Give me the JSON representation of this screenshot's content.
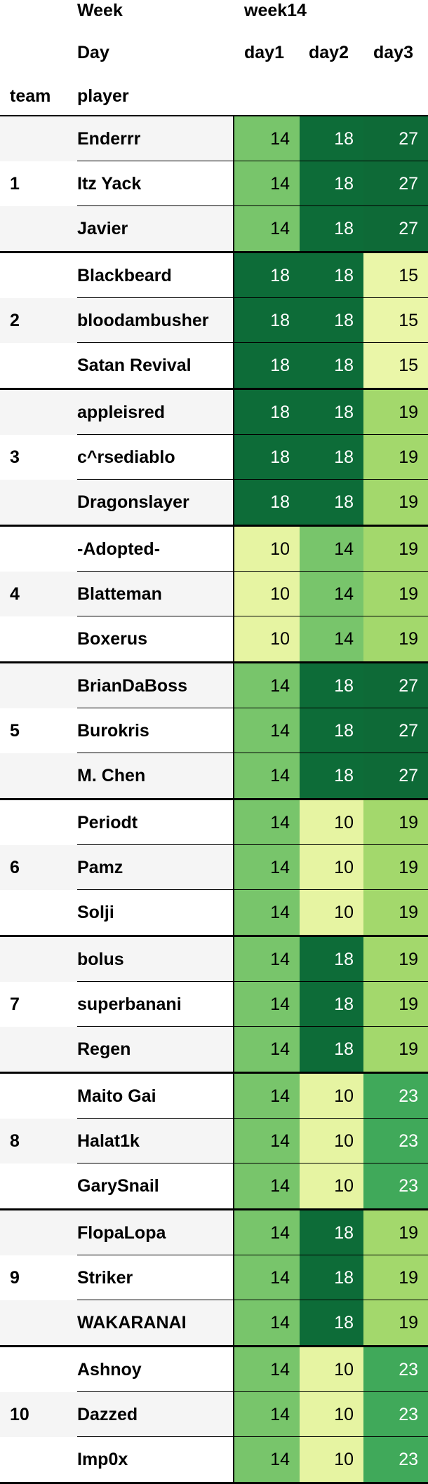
{
  "header": {
    "week_label": "Week",
    "week_value": "week14",
    "day_label": "Day",
    "day_columns": [
      "day1",
      "day2",
      "day3"
    ],
    "team_label": "team",
    "player_label": "player"
  },
  "colors": {
    "10": "#e6f4a2",
    "14": "#78c56b",
    "15": "#eaf6a8",
    "18": "#0d6c38",
    "19": "#a3d86c",
    "23": "#40a95a",
    "27": "#0e6a37"
  },
  "teams": [
    {
      "team": "1",
      "players": [
        {
          "name": "Enderrr",
          "scores": [
            14,
            18,
            27
          ]
        },
        {
          "name": "Itz Yack",
          "scores": [
            14,
            18,
            27
          ]
        },
        {
          "name": "Javier",
          "scores": [
            14,
            18,
            27
          ]
        }
      ]
    },
    {
      "team": "2",
      "players": [
        {
          "name": "Blackbeard",
          "scores": [
            18,
            18,
            15
          ]
        },
        {
          "name": "bloodambusher",
          "scores": [
            18,
            18,
            15
          ]
        },
        {
          "name": "Satan Revival",
          "scores": [
            18,
            18,
            15
          ]
        }
      ]
    },
    {
      "team": "3",
      "players": [
        {
          "name": "appleisred",
          "scores": [
            18,
            18,
            19
          ]
        },
        {
          "name": "c^rsediablo",
          "scores": [
            18,
            18,
            19
          ]
        },
        {
          "name": "Dragonslayer",
          "scores": [
            18,
            18,
            19
          ]
        }
      ]
    },
    {
      "team": "4",
      "players": [
        {
          "name": "-Adopted-",
          "scores": [
            10,
            14,
            19
          ]
        },
        {
          "name": "Blatteman",
          "scores": [
            10,
            14,
            19
          ]
        },
        {
          "name": "Boxerus",
          "scores": [
            10,
            14,
            19
          ]
        }
      ]
    },
    {
      "team": "5",
      "players": [
        {
          "name": "BrianDaBoss",
          "scores": [
            14,
            18,
            27
          ]
        },
        {
          "name": "Burokris",
          "scores": [
            14,
            18,
            27
          ]
        },
        {
          "name": "M. Chen",
          "scores": [
            14,
            18,
            27
          ]
        }
      ]
    },
    {
      "team": "6",
      "players": [
        {
          "name": "Periodt",
          "scores": [
            14,
            10,
            19
          ]
        },
        {
          "name": "Pamz",
          "scores": [
            14,
            10,
            19
          ]
        },
        {
          "name": "Solji",
          "scores": [
            14,
            10,
            19
          ]
        }
      ]
    },
    {
      "team": "7",
      "players": [
        {
          "name": "bolus",
          "scores": [
            14,
            18,
            19
          ]
        },
        {
          "name": "superbanani",
          "scores": [
            14,
            18,
            19
          ]
        },
        {
          "name": "Regen",
          "scores": [
            14,
            18,
            19
          ]
        }
      ]
    },
    {
      "team": "8",
      "players": [
        {
          "name": "Maito Gai",
          "scores": [
            14,
            10,
            23
          ]
        },
        {
          "name": "Halat1k",
          "scores": [
            14,
            10,
            23
          ]
        },
        {
          "name": "GarySnail",
          "scores": [
            14,
            10,
            23
          ]
        }
      ]
    },
    {
      "team": "9",
      "players": [
        {
          "name": "FlopaLopa",
          "scores": [
            14,
            18,
            19
          ]
        },
        {
          "name": "Striker",
          "scores": [
            14,
            18,
            19
          ]
        },
        {
          "name": "WAKARANAI",
          "scores": [
            14,
            18,
            19
          ]
        }
      ]
    },
    {
      "team": "10",
      "players": [
        {
          "name": "Ashnoy",
          "scores": [
            14,
            10,
            23
          ]
        },
        {
          "name": "Dazzed",
          "scores": [
            14,
            10,
            23
          ]
        },
        {
          "name": "Imp0x",
          "scores": [
            14,
            10,
            23
          ]
        }
      ]
    }
  ]
}
